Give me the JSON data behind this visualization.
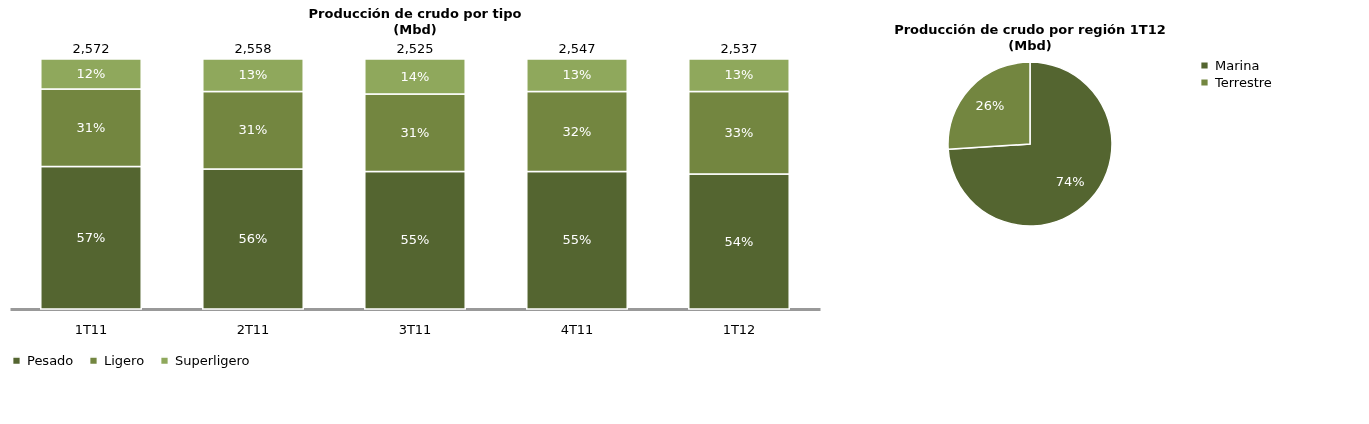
{
  "chart_data": [
    {
      "type": "bar",
      "title": "Producción de crudo por tipo",
      "subtitle": "(Mbd)",
      "categories": [
        "1T11",
        "2T11",
        "3T11",
        "4T11",
        "1T12"
      ],
      "stacked": true,
      "tick_labels": "x",
      "legend": "bottom",
      "series": [
        {
          "name": "Pesado",
          "color": "#546530",
          "values": [
            57,
            56,
            55,
            55,
            54
          ],
          "value_labels": [
            "57%",
            "56%",
            "55%",
            "55%",
            "54%"
          ]
        },
        {
          "name": "Ligero",
          "color": "#738640",
          "values": [
            31,
            31,
            31,
            32,
            33
          ],
          "value_labels": [
            "31%",
            "31%",
            "31%",
            "32%",
            "33%"
          ]
        },
        {
          "name": "Superligero",
          "color": "#8fa85c",
          "values": [
            12,
            13,
            14,
            13,
            13
          ],
          "value_labels": [
            "12%",
            "13%",
            "14%",
            "13%",
            "13%"
          ]
        }
      ],
      "annotations": [
        {
          "text": "2,572",
          "x": "1T11",
          "y": 100
        },
        {
          "text": "2,558",
          "x": "2T11",
          "y": 100
        },
        {
          "text": "2,525",
          "x": "3T11",
          "y": 100
        },
        {
          "text": "2,547",
          "x": "4T11",
          "y": 100
        },
        {
          "text": "2,537",
          "x": "1T12",
          "y": 100
        }
      ]
    },
    {
      "type": "pie",
      "title": "Producción de crudo por región 1T12",
      "subtitle": "(Mbd)",
      "categories": [
        "Marina",
        "Terrestre"
      ],
      "values": [
        74,
        26
      ],
      "colors": [
        "#546530",
        "#738640"
      ],
      "value_labels": [
        "74%",
        "26%"
      ],
      "legend": "right"
    }
  ]
}
